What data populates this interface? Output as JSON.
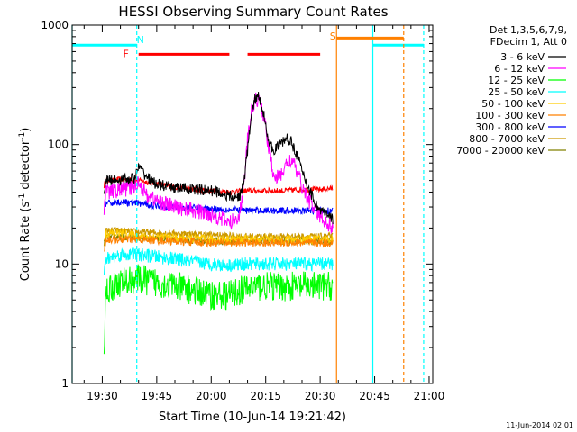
{
  "chart_data": {
    "type": "line",
    "title": "HESSI Observing Summary Count Rates",
    "xlabel": "Start Time (10-Jun-14 19:21:42)",
    "ylabel_main": "Count Rate (s",
    "ylabel_sup1": "-1",
    "ylabel_mid": " detector",
    "ylabel_sup2": "-1",
    "ylabel_end": ")",
    "y_scale": "log",
    "ylim": [
      1,
      1000
    ],
    "xlim_minutes_after_1930": [
      -8.3,
      91
    ],
    "x_tick_minutes": [
      0,
      15,
      30,
      45,
      60,
      75,
      90
    ],
    "x_tick_labels": [
      "19:30",
      "19:45",
      "20:00",
      "20:15",
      "20:30",
      "20:45",
      "21:00"
    ],
    "y_tick_values": [
      1,
      10,
      100,
      1000
    ],
    "y_tick_labels": [
      "1",
      "10",
      "100",
      "1000"
    ],
    "legend_header": [
      "Det 1,3,5,6,7,9,",
      "FDecim 1, Att 0"
    ],
    "legend_position": "top-right outside",
    "timestamp": "11-Jun-2014 02:01",
    "data_window_minutes": [
      0.5,
      63.5
    ],
    "series": [
      {
        "name": "3 - 6 keV",
        "color": "#000000",
        "noise": 0.05,
        "x": [
          0.5,
          1,
          9,
          10,
          12,
          14,
          18,
          22,
          26,
          30,
          32,
          34,
          36,
          37,
          38,
          39,
          40,
          41,
          42,
          43,
          44,
          45,
          46,
          47,
          48,
          49,
          50,
          51,
          52,
          53,
          54,
          55,
          56,
          57,
          58,
          59,
          60,
          61,
          62,
          63.5
        ],
        "y": [
          40,
          50,
          52,
          65,
          55,
          48,
          44,
          43,
          42,
          41,
          40,
          38,
          36,
          36,
          38,
          48,
          90,
          170,
          240,
          250,
          210,
          150,
          100,
          90,
          95,
          100,
          108,
          112,
          105,
          92,
          75,
          60,
          50,
          42,
          36,
          31,
          28,
          27,
          25,
          24
        ]
      },
      {
        "name": "6 - 12 keV",
        "color": "#ff00ff",
        "noise": 0.07,
        "x": [
          0.5,
          1,
          9,
          10,
          12,
          15,
          20,
          25,
          30,
          33,
          35,
          37,
          38,
          39,
          40,
          41,
          42,
          43,
          44,
          45,
          46,
          47,
          48,
          49,
          50,
          51,
          52,
          53,
          54,
          55,
          56,
          58,
          60,
          62,
          63.5
        ],
        "y": [
          30,
          40,
          44,
          50,
          38,
          34,
          30,
          28,
          26,
          24,
          22,
          24,
          28,
          45,
          110,
          180,
          235,
          240,
          200,
          140,
          85,
          60,
          52,
          55,
          62,
          70,
          75,
          65,
          55,
          45,
          38,
          30,
          25,
          22,
          20
        ]
      },
      {
        "name": "12 - 25 keV",
        "color": "#00ff00",
        "noise": 0.13,
        "x": [
          0.5,
          1,
          5,
          10,
          15,
          20,
          25,
          30,
          35,
          38,
          42,
          46,
          50,
          55,
          60,
          63.5
        ],
        "y": [
          2,
          6,
          7,
          7.5,
          7,
          6.5,
          6,
          5.5,
          5.5,
          6,
          6.5,
          6.5,
          6.5,
          6.5,
          6.5,
          6.5
        ]
      },
      {
        "name": "25 - 50 keV",
        "color": "#00ffff",
        "noise": 0.06,
        "x": [
          0.5,
          1,
          5,
          10,
          15,
          20,
          25,
          30,
          35,
          40,
          45,
          50,
          55,
          60,
          63.5
        ],
        "y": [
          8,
          11,
          12,
          12,
          11.5,
          11,
          10.5,
          10,
          9.8,
          10,
          10,
          10,
          10,
          10,
          10
        ]
      },
      {
        "name": "50 - 100 keV",
        "color": "#ffcc00",
        "noise": 0.04,
        "x": [
          0.5,
          1,
          5,
          10,
          20,
          30,
          40,
          50,
          60,
          63.5
        ],
        "y": [
          14,
          18,
          18,
          17,
          16.5,
          16,
          16,
          16,
          16,
          16
        ]
      },
      {
        "name": "100 - 300 keV",
        "color": "#ff8000",
        "noise": 0.035,
        "x": [
          0.5,
          1,
          5,
          10,
          20,
          30,
          40,
          50,
          60,
          63.5
        ],
        "y": [
          13,
          16,
          16,
          16,
          15.5,
          15,
          15,
          15,
          15,
          15
        ]
      },
      {
        "name": "300 - 800 keV",
        "color": "#0000ff",
        "noise": 0.03,
        "x": [
          0.5,
          1,
          5,
          10,
          20,
          30,
          40,
          50,
          60,
          63.5
        ],
        "y": [
          28,
          32,
          33,
          32,
          30,
          29,
          28,
          28,
          28,
          28
        ]
      },
      {
        "name": "800 - 7000 keV",
        "color": "#cc9900",
        "noise": 0.03,
        "x": [
          0.5,
          1,
          5,
          10,
          20,
          30,
          40,
          50,
          60,
          63.5
        ],
        "y": [
          16,
          19,
          19,
          18.5,
          18,
          17.5,
          17,
          17,
          17,
          17
        ]
      },
      {
        "name": "7000 - 20000 keV",
        "color": "#808000",
        "noise": 0.03,
        "x": [
          0.5,
          1,
          5,
          10,
          20,
          30,
          40,
          50,
          60,
          63.5
        ],
        "y": [
          14,
          17,
          17,
          16.5,
          16,
          15.5,
          15.5,
          15.5,
          15.5,
          15.5
        ]
      },
      {
        "name": "",
        "color": "#ff0000",
        "noise": 0.025,
        "legend": false,
        "x": [
          0.5,
          1,
          5,
          10,
          15,
          20,
          25,
          30,
          35,
          40,
          45,
          50,
          55,
          60,
          63.5
        ],
        "y": [
          45,
          50,
          51,
          50,
          47,
          44,
          42,
          41,
          40,
          41,
          41,
          41,
          42,
          42,
          43
        ]
      }
    ],
    "flags": [
      {
        "label": "N",
        "color": "#00ffff",
        "label_minute": 10.5,
        "label_value": 760,
        "bars": [
          {
            "x0": -8.3,
            "x1": 9.5,
            "value": 680
          },
          {
            "x0": 74.5,
            "x1": 88.5,
            "value": 680
          }
        ],
        "solid_lines": [
          -8.3,
          74.5
        ],
        "dashed_lines": [
          9.5,
          88.5
        ]
      },
      {
        "label": "F",
        "color": "#ff0000",
        "label_minute": 6.5,
        "label_value": 580,
        "bars": [
          {
            "x0": 10,
            "x1": 35,
            "value": 570
          },
          {
            "x0": 40,
            "x1": 60,
            "value": 570
          }
        ],
        "solid_lines": [],
        "dashed_lines": []
      },
      {
        "label": "S",
        "color": "#ff8000",
        "label_minute": 63.5,
        "label_value": 810,
        "bars": [
          {
            "x0": 64.5,
            "x1": 83,
            "value": 780
          }
        ],
        "solid_lines": [
          64.5
        ],
        "dashed_lines": [
          83
        ]
      }
    ]
  }
}
